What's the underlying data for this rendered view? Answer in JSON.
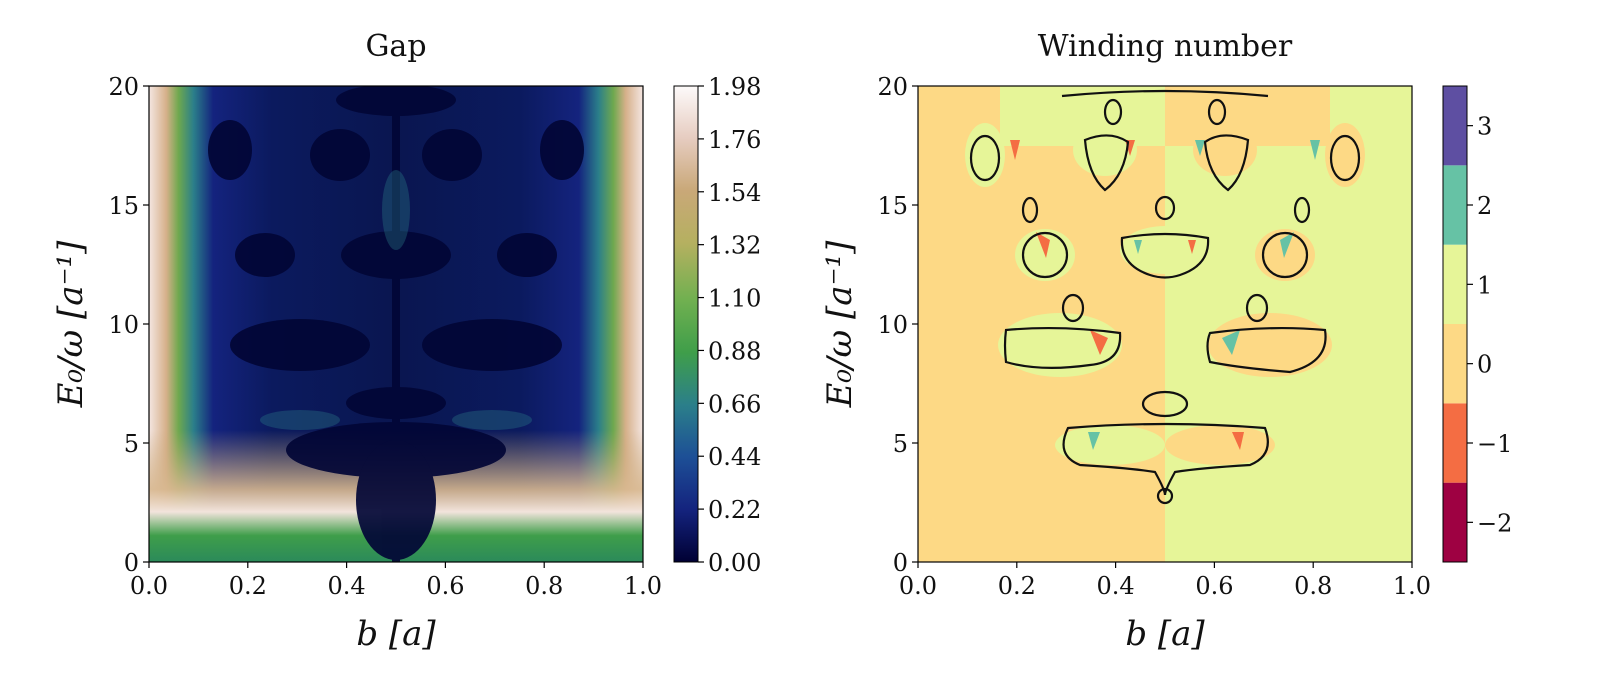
{
  "chart_data": [
    {
      "type": "heatmap",
      "title": "Gap",
      "xlabel": "b [a]",
      "ylabel": "E₀/ω [a⁻¹]",
      "xlim": [
        0.0,
        1.0
      ],
      "ylim": [
        0,
        20
      ],
      "x_ticks": [
        "0.0",
        "0.2",
        "0.4",
        "0.6",
        "0.8",
        "1.0"
      ],
      "y_ticks": [
        "0",
        "5",
        "10",
        "15",
        "20"
      ],
      "colormap": "gist_earth",
      "colorbar_range": [
        0.0,
        1.98
      ],
      "colorbar_ticks": [
        "0.00",
        "0.22",
        "0.44",
        "0.66",
        "0.88",
        "1.10",
        "1.32",
        "1.54",
        "1.76",
        "1.98"
      ],
      "colors": [
        "#000033",
        "#14237e",
        "#1d4f96",
        "#2b7f8a",
        "#3f9e4a",
        "#70b050",
        "#b5b060",
        "#c9a878",
        "#e6ccc0",
        "#fdfafa"
      ]
    },
    {
      "type": "heatmap",
      "title": "Winding number",
      "xlabel": "b [a]",
      "ylabel": "E₀/ω [a⁻¹]",
      "xlim": [
        0.0,
        1.0
      ],
      "ylim": [
        0,
        20
      ],
      "x_ticks": [
        "0.0",
        "0.2",
        "0.4",
        "0.6",
        "0.8",
        "1.0"
      ],
      "y_ticks": [
        "0",
        "5",
        "10",
        "15",
        "20"
      ],
      "colorbar_levels": [
        -2,
        -1,
        0,
        1,
        2,
        3
      ],
      "colorbar_ticks": [
        "−2",
        "−1",
        "0",
        "1",
        "2",
        "3"
      ],
      "colors": {
        "-2": "#9e0142",
        "-1": "#f46d43",
        "0": "#fdd985",
        "1": "#e6f598",
        "2": "#66c2a5",
        "3": "#5e4fa2"
      },
      "regions": [
        {
          "winding": 0,
          "x": [
            0.0,
            0.5
          ],
          "y": [
            0,
            20
          ]
        },
        {
          "winding": 1,
          "x": [
            0.5,
            1.0
          ],
          "y": [
            0,
            20
          ]
        }
      ]
    }
  ]
}
